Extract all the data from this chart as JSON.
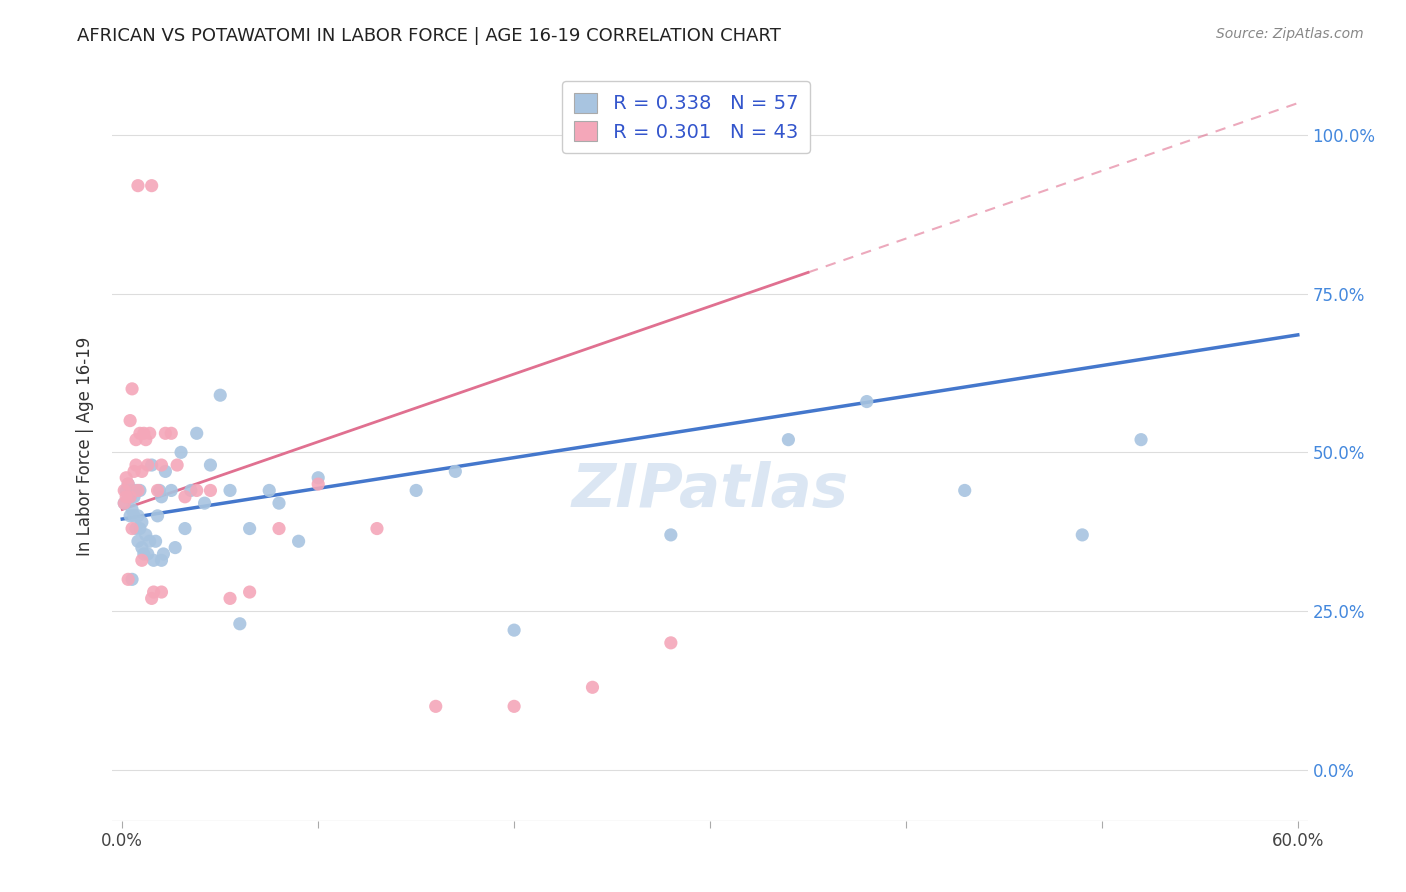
{
  "title": "AFRICAN VS POTAWATOMI IN LABOR FORCE | AGE 16-19 CORRELATION CHART",
  "source": "Source: ZipAtlas.com",
  "ylabel_label": "In Labor Force | Age 16-19",
  "african_color": "#a8c4e0",
  "potawatomi_color": "#f4a7b9",
  "african_R": 0.338,
  "african_N": 57,
  "potawatomi_R": 0.301,
  "potawatomi_N": 43,
  "trendline_african_color": "#4477cc",
  "trendline_potawatomi_color": "#e07090",
  "legend_text_color": "#3355cc",
  "watermark": "ZIPatlas",
  "african_x": [
    0.001,
    0.002,
    0.003,
    0.003,
    0.004,
    0.004,
    0.005,
    0.005,
    0.005,
    0.006,
    0.006,
    0.007,
    0.007,
    0.008,
    0.008,
    0.009,
    0.009,
    0.01,
    0.01,
    0.011,
    0.012,
    0.013,
    0.014,
    0.015,
    0.016,
    0.017,
    0.018,
    0.019,
    0.02,
    0.02,
    0.021,
    0.022,
    0.025,
    0.027,
    0.03,
    0.032,
    0.035,
    0.038,
    0.042,
    0.045,
    0.05,
    0.055,
    0.06,
    0.065,
    0.075,
    0.08,
    0.09,
    0.1,
    0.15,
    0.17,
    0.2,
    0.28,
    0.34,
    0.38,
    0.43,
    0.49,
    0.52
  ],
  "african_y": [
    0.42,
    0.44,
    0.43,
    0.45,
    0.4,
    0.43,
    0.41,
    0.44,
    0.3,
    0.4,
    0.43,
    0.38,
    0.44,
    0.36,
    0.4,
    0.38,
    0.44,
    0.35,
    0.39,
    0.34,
    0.37,
    0.34,
    0.36,
    0.48,
    0.33,
    0.36,
    0.4,
    0.44,
    0.33,
    0.43,
    0.34,
    0.47,
    0.44,
    0.35,
    0.5,
    0.38,
    0.44,
    0.53,
    0.42,
    0.48,
    0.59,
    0.44,
    0.23,
    0.38,
    0.44,
    0.42,
    0.36,
    0.46,
    0.44,
    0.47,
    0.22,
    0.37,
    0.52,
    0.58,
    0.44,
    0.37,
    0.52
  ],
  "potawatomi_x": [
    0.001,
    0.001,
    0.002,
    0.002,
    0.003,
    0.003,
    0.004,
    0.004,
    0.005,
    0.005,
    0.006,
    0.007,
    0.007,
    0.008,
    0.009,
    0.01,
    0.011,
    0.012,
    0.013,
    0.014,
    0.015,
    0.016,
    0.018,
    0.02,
    0.022,
    0.025,
    0.028,
    0.032,
    0.038,
    0.045,
    0.055,
    0.065,
    0.08,
    0.1,
    0.13,
    0.16,
    0.2,
    0.24,
    0.28,
    0.01,
    0.008,
    0.015,
    0.02
  ],
  "potawatomi_y": [
    0.42,
    0.44,
    0.43,
    0.46,
    0.45,
    0.3,
    0.43,
    0.55,
    0.6,
    0.38,
    0.47,
    0.52,
    0.48,
    0.44,
    0.53,
    0.47,
    0.53,
    0.52,
    0.48,
    0.53,
    0.27,
    0.28,
    0.44,
    0.48,
    0.53,
    0.53,
    0.48,
    0.43,
    0.44,
    0.44,
    0.27,
    0.28,
    0.38,
    0.45,
    0.38,
    0.1,
    0.1,
    0.13,
    0.2,
    0.33,
    0.92,
    0.92,
    0.28
  ],
  "xlim": [
    0.0,
    0.6
  ],
  "ylim": [
    -0.08,
    1.1
  ],
  "x_tick_vals": [
    0.0,
    0.1,
    0.2,
    0.3,
    0.4,
    0.5,
    0.6
  ],
  "x_tick_labels": [
    "0.0%",
    "",
    "",
    "",
    "",
    "",
    "60.0%"
  ],
  "y_tick_vals": [
    0.0,
    0.25,
    0.5,
    0.75,
    1.0
  ],
  "y_tick_labels_right": [
    "0.0%",
    "25.0%",
    "50.0%",
    "75.0%",
    "100.0%"
  ]
}
